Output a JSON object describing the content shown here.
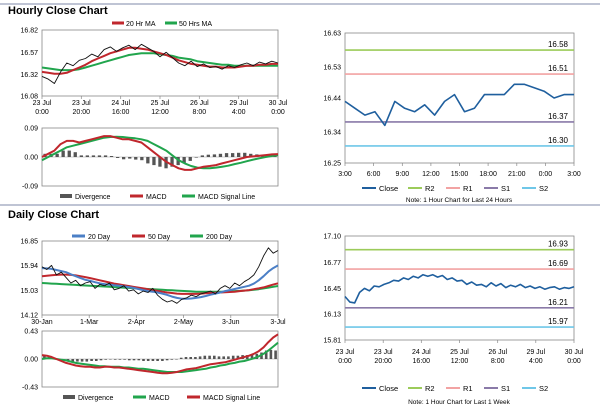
{
  "sections": {
    "hourly_title": "Hourly Close Chart",
    "daily_title": "Daily Close Chart"
  },
  "colors": {
    "close": "#1f5f9e",
    "ma_short": "#c0272d",
    "ma_long": "#21a54d",
    "ma_mid": "#4b7fc6",
    "macd": "#c0272d",
    "signal": "#21a54d",
    "divergence": "#555555",
    "r2": "#9ccb5a",
    "r1": "#f2a3a3",
    "s1": "#8a7aa8",
    "s2": "#6fc7e8"
  },
  "chart_data": [
    {
      "id": "hourly_price",
      "type": "line",
      "xlabels": [
        "23 Jul\n0:00",
        "23 Jul\n20:00",
        "24 Jul\n16:00",
        "25 Jul\n12:00",
        "26 Jul\n8:00",
        "29 Jul\n4:00",
        "30 Jul\n0:00"
      ],
      "yticks": [
        "16.82",
        "16.57",
        "16.32",
        "16.08"
      ],
      "ylim": [
        16.08,
        16.82
      ],
      "legend": [
        "20 Hr MA",
        "50 Hrs MA"
      ],
      "series": [
        {
          "name": "Close",
          "values": [
            16.3,
            16.27,
            16.22,
            16.35,
            16.45,
            16.42,
            16.48,
            16.5,
            16.55,
            16.52,
            16.6,
            16.63,
            16.58,
            16.62,
            16.65,
            16.6,
            16.66,
            16.62,
            16.58,
            16.52,
            16.57,
            16.51,
            16.45,
            16.42,
            16.47,
            16.41,
            16.44,
            16.4,
            16.41,
            16.38,
            16.42,
            16.4,
            16.43,
            16.45,
            16.42,
            16.46,
            16.44,
            16.47,
            16.45
          ]
        },
        {
          "name": "20 Hr MA",
          "values": [
            16.35,
            16.34,
            16.33,
            16.33,
            16.34,
            16.37,
            16.4,
            16.43,
            16.47,
            16.5,
            16.53,
            16.56,
            16.58,
            16.6,
            16.62,
            16.62,
            16.61,
            16.6,
            16.58,
            16.56,
            16.54,
            16.51,
            16.48,
            16.46,
            16.44,
            16.43,
            16.42,
            16.41,
            16.41,
            16.4,
            16.4,
            16.4,
            16.41,
            16.42,
            16.42,
            16.43,
            16.43,
            16.44,
            16.44
          ]
        },
        {
          "name": "50 Hrs MA",
          "values": [
            16.4,
            16.39,
            16.38,
            16.37,
            16.37,
            16.37,
            16.38,
            16.4,
            16.42,
            16.44,
            16.46,
            16.48,
            16.5,
            16.52,
            16.54,
            16.55,
            16.56,
            16.56,
            16.56,
            16.55,
            16.54,
            16.53,
            16.51,
            16.5,
            16.49,
            16.47,
            16.46,
            16.45,
            16.44,
            16.43,
            16.43,
            16.42,
            16.42,
            16.42,
            16.42,
            16.42,
            16.42,
            16.42,
            16.42
          ]
        }
      ]
    },
    {
      "id": "hourly_macd",
      "type": "line",
      "yticks": [
        "0.09",
        "0.00",
        "-0.09"
      ],
      "ylim": [
        -0.09,
        0.09
      ],
      "legend": [
        "Divergence",
        "MACD",
        "MACD Signal Line"
      ],
      "series": [
        {
          "name": "MACD",
          "values": [
            0.0,
            0.01,
            0.02,
            0.04,
            0.05,
            0.05,
            0.045,
            0.05,
            0.055,
            0.06,
            0.065,
            0.065,
            0.06,
            0.055,
            0.055,
            0.05,
            0.045,
            0.03,
            0.015,
            0.0,
            -0.015,
            -0.025,
            -0.035,
            -0.04,
            -0.04,
            -0.035,
            -0.03,
            -0.028,
            -0.025,
            -0.02,
            -0.015,
            -0.01,
            -0.005,
            0.0,
            0.002,
            0.004,
            0.006,
            0.008,
            0.009
          ]
        },
        {
          "name": "MACD Signal Line",
          "values": [
            -0.01,
            0.0,
            0.01,
            0.02,
            0.03,
            0.035,
            0.04,
            0.045,
            0.05,
            0.055,
            0.06,
            0.062,
            0.063,
            0.062,
            0.06,
            0.058,
            0.055,
            0.05,
            0.04,
            0.03,
            0.02,
            0.005,
            -0.01,
            -0.02,
            -0.028,
            -0.033,
            -0.035,
            -0.035,
            -0.033,
            -0.03,
            -0.027,
            -0.022,
            -0.018,
            -0.013,
            -0.008,
            -0.004,
            0.0,
            0.003,
            0.006
          ]
        },
        {
          "name": "Divergence",
          "values": [
            0.01,
            0.01,
            0.01,
            0.02,
            0.02,
            0.015,
            0.005,
            0.005,
            0.005,
            0.005,
            0.005,
            0.003,
            -0.003,
            -0.007,
            -0.005,
            -0.008,
            -0.01,
            -0.02,
            -0.025,
            -0.03,
            -0.035,
            -0.03,
            -0.025,
            -0.02,
            -0.012,
            -0.002,
            0.005,
            0.007,
            0.008,
            0.01,
            0.012,
            0.012,
            0.013,
            0.013,
            0.01,
            0.008,
            0.006,
            0.005,
            0.003
          ]
        }
      ]
    },
    {
      "id": "hourly_pivot",
      "type": "line",
      "xlabels": [
        "3:00",
        "6:00",
        "9:00",
        "12:00",
        "15:00",
        "18:00",
        "21:00",
        "0:00",
        "3:00"
      ],
      "yticks": [
        "16.63",
        "16.53",
        "16.44",
        "16.34",
        "16.25"
      ],
      "ylim": [
        16.25,
        16.63
      ],
      "levels": [
        {
          "name": "R2",
          "value": 16.58,
          "label": "16.58"
        },
        {
          "name": "R1",
          "value": 16.51,
          "label": "16.51"
        },
        {
          "name": "S1",
          "value": 16.37,
          "label": "16.37"
        },
        {
          "name": "S2",
          "value": 16.3,
          "label": "16.30"
        }
      ],
      "legend": [
        "Close",
        "R2",
        "R1",
        "S1",
        "S2"
      ],
      "note": "Note: 1 Hour Chart for Last 24 Hours",
      "series": [
        {
          "name": "Close",
          "values": [
            16.43,
            16.41,
            16.39,
            16.4,
            16.36,
            16.43,
            16.41,
            16.4,
            16.42,
            16.39,
            16.43,
            16.45,
            16.4,
            16.41,
            16.45,
            16.45,
            16.45,
            16.48,
            16.48,
            16.47,
            16.46,
            16.44,
            16.45,
            16.45
          ]
        }
      ]
    },
    {
      "id": "daily_price",
      "type": "line",
      "xlabels": [
        "30-Jan",
        "1-Mar",
        "2-Apr",
        "2-May",
        "3-Jun",
        "3-Jul"
      ],
      "yticks": [
        "16.85",
        "15.94",
        "15.03",
        "14.12"
      ],
      "ylim": [
        14.12,
        16.85
      ],
      "legend": [
        "20 Day",
        "50 Day",
        "200 Day"
      ],
      "series": [
        {
          "name": "Close",
          "values": [
            15.9,
            15.8,
            15.95,
            15.6,
            15.7,
            15.5,
            15.3,
            15.4,
            15.2,
            15.3,
            15.35,
            15.1,
            15.25,
            15.2,
            15.3,
            15.05,
            15.1,
            15.2,
            15.0,
            15.05,
            14.9,
            15.0,
            14.95,
            15.1,
            14.85,
            14.7,
            14.6,
            14.65,
            14.55,
            14.7,
            14.75,
            14.85,
            14.8,
            14.9,
            14.95,
            15.0,
            14.9,
            15.1,
            15.2,
            15.1,
            15.3,
            15.2,
            15.35,
            15.45,
            15.6,
            15.9,
            16.3,
            16.6,
            16.4,
            16.5
          ]
        },
        {
          "name": "20 Day",
          "values": [
            15.85,
            15.84,
            15.82,
            15.78,
            15.74,
            15.7,
            15.62,
            15.55,
            15.48,
            15.42,
            15.38,
            15.33,
            15.29,
            15.26,
            15.24,
            15.22,
            15.2,
            15.18,
            15.15,
            15.12,
            15.08,
            15.04,
            15.0,
            14.98,
            14.95,
            14.91,
            14.86,
            14.8,
            14.75,
            14.72,
            14.72,
            14.73,
            14.75,
            14.78,
            14.82,
            14.87,
            14.91,
            14.95,
            15.0,
            15.04,
            15.08,
            15.12,
            15.16,
            15.2,
            15.28,
            15.4,
            15.55,
            15.72,
            15.85,
            15.95
          ]
        },
        {
          "name": "50 Day",
          "values": [
            15.55,
            15.57,
            15.59,
            15.6,
            15.61,
            15.61,
            15.6,
            15.58,
            15.55,
            15.52,
            15.48,
            15.44,
            15.4,
            15.36,
            15.32,
            15.28,
            15.25,
            15.22,
            15.19,
            15.16,
            15.13,
            15.1,
            15.07,
            15.04,
            15.01,
            14.98,
            14.95,
            14.93,
            14.91,
            14.9,
            14.9,
            14.9,
            14.9,
            14.91,
            14.92,
            14.93,
            14.94,
            14.95,
            14.96,
            14.97,
            14.98,
            15.0,
            15.02,
            15.04,
            15.07,
            15.1,
            15.14,
            15.19,
            15.24,
            15.29
          ]
        },
        {
          "name": "200 Day",
          "values": [
            15.3,
            15.29,
            15.28,
            15.27,
            15.26,
            15.25,
            15.24,
            15.23,
            15.22,
            15.21,
            15.2,
            15.19,
            15.18,
            15.17,
            15.16,
            15.15,
            15.14,
            15.13,
            15.12,
            15.11,
            15.1,
            15.09,
            15.08,
            15.07,
            15.06,
            15.05,
            15.04,
            15.03,
            15.02,
            15.01,
            15.0,
            14.99,
            14.98,
            14.98,
            14.98,
            14.98,
            14.98,
            14.98,
            14.98,
            14.99,
            15.0,
            15.01,
            15.02,
            15.03,
            15.05,
            15.07,
            15.1,
            15.13,
            15.16,
            15.19
          ]
        }
      ]
    },
    {
      "id": "daily_macd",
      "type": "line",
      "yticks": [
        "0.43",
        "0.00",
        "-0.43"
      ],
      "ylim": [
        -0.43,
        0.43
      ],
      "legend": [
        "Divergence",
        "MACD",
        "MACD Signal Line"
      ],
      "series": [
        {
          "name": "MACD",
          "values": [
            0.06,
            0.05,
            0.03,
            0.0,
            -0.03,
            -0.06,
            -0.08,
            -0.1,
            -0.11,
            -0.12,
            -0.12,
            -0.13,
            -0.13,
            -0.12,
            -0.12,
            -0.13,
            -0.13,
            -0.14,
            -0.15,
            -0.16,
            -0.17,
            -0.18,
            -0.19,
            -0.2,
            -0.21,
            -0.22,
            -0.22,
            -0.21,
            -0.2,
            -0.18,
            -0.16,
            -0.15,
            -0.14,
            -0.12,
            -0.1,
            -0.08,
            -0.07,
            -0.06,
            -0.05,
            -0.03,
            -0.01,
            0.01,
            0.03,
            0.05,
            0.08,
            0.12,
            0.18,
            0.26,
            0.33,
            0.38
          ]
        },
        {
          "name": "MACD Signal Line",
          "values": [
            0.0,
            0.01,
            0.01,
            0.0,
            -0.01,
            -0.02,
            -0.04,
            -0.06,
            -0.07,
            -0.08,
            -0.09,
            -0.1,
            -0.11,
            -0.11,
            -0.12,
            -0.12,
            -0.12,
            -0.13,
            -0.13,
            -0.14,
            -0.15,
            -0.15,
            -0.16,
            -0.17,
            -0.18,
            -0.19,
            -0.2,
            -0.2,
            -0.2,
            -0.2,
            -0.19,
            -0.18,
            -0.17,
            -0.16,
            -0.15,
            -0.13,
            -0.12,
            -0.1,
            -0.09,
            -0.07,
            -0.06,
            -0.04,
            -0.03,
            -0.01,
            0.01,
            0.04,
            0.08,
            0.13,
            0.19,
            0.25
          ]
        },
        {
          "name": "Divergence",
          "values": [
            0.06,
            0.04,
            0.02,
            0.0,
            -0.02,
            -0.04,
            -0.04,
            -0.04,
            -0.04,
            -0.04,
            -0.03,
            -0.03,
            -0.02,
            -0.01,
            0.0,
            -0.01,
            -0.01,
            -0.01,
            -0.02,
            -0.02,
            -0.02,
            -0.03,
            -0.03,
            -0.03,
            -0.03,
            -0.03,
            -0.02,
            -0.01,
            0.0,
            0.02,
            0.03,
            0.03,
            0.03,
            0.04,
            0.05,
            0.05,
            0.05,
            0.04,
            0.04,
            0.04,
            0.05,
            0.05,
            0.06,
            0.06,
            0.07,
            0.08,
            0.1,
            0.13,
            0.14,
            0.13
          ]
        }
      ]
    },
    {
      "id": "daily_pivot",
      "type": "line",
      "xlabels": [
        "23 Jul\n0:00",
        "23 Jul\n20:00",
        "24 Jul\n16:00",
        "25 Jul\n12:00",
        "26 Jul\n8:00",
        "29 Jul\n4:00",
        "30 Jul\n0:00"
      ],
      "yticks": [
        "17.10",
        "16.77",
        "16.45",
        "16.13",
        "15.81"
      ],
      "ylim": [
        15.81,
        17.1
      ],
      "levels": [
        {
          "name": "R2",
          "value": 16.93,
          "label": "16.93"
        },
        {
          "name": "R1",
          "value": 16.69,
          "label": "16.69"
        },
        {
          "name": "S1",
          "value": 16.21,
          "label": "16.21"
        },
        {
          "name": "S2",
          "value": 15.97,
          "label": "15.97"
        }
      ],
      "legend": [
        "Close",
        "R2",
        "R1",
        "S1",
        "S2"
      ],
      "note": "Note: 1 Hour Chart for Last 1 Week",
      "series": [
        {
          "name": "Close",
          "values": [
            16.35,
            16.28,
            16.27,
            16.4,
            16.45,
            16.42,
            16.48,
            16.47,
            16.5,
            16.52,
            16.55,
            16.54,
            16.58,
            16.56,
            16.6,
            16.58,
            16.62,
            16.6,
            16.62,
            16.59,
            16.61,
            16.56,
            16.58,
            16.54,
            16.55,
            16.5,
            16.53,
            16.49,
            16.5,
            16.47,
            16.52,
            16.48,
            16.51,
            16.46,
            16.49,
            16.47,
            16.5,
            16.46,
            16.48,
            16.45,
            16.47,
            16.44,
            16.46,
            16.47,
            16.44,
            16.46,
            16.45,
            16.47
          ]
        }
      ]
    }
  ]
}
